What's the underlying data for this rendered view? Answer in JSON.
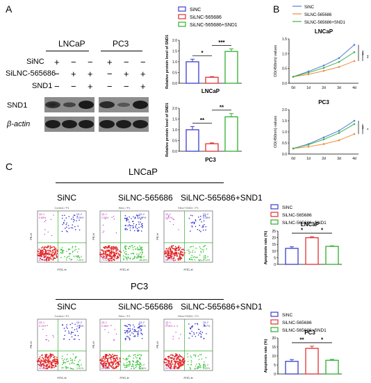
{
  "panels": {
    "A": "A",
    "B": "B",
    "C": "C"
  },
  "western_blot": {
    "cell_lines": [
      "LNCaP",
      "PC3"
    ],
    "row_labels": [
      "SiNC",
      "SiLNC-565686",
      "SND1"
    ],
    "signs": [
      [
        "+",
        "−",
        "−",
        "+",
        "−",
        "−"
      ],
      [
        "−",
        "+",
        "+",
        "−",
        "+",
        "+"
      ],
      [
        "−",
        "−",
        "+",
        "−",
        "−",
        "+"
      ]
    ],
    "protein_labels": [
      "SND1",
      "β-actin"
    ]
  },
  "legend": {
    "sinc": "SiNC",
    "silnc": "SiLNC-565686",
    "silnc_snd1": "SiLNC-565686+SND1"
  },
  "colors": {
    "sinc": "#3b3bcc",
    "silnc": "#e03030",
    "silnc_snd1": "#2eae2e",
    "orange": "#f08a3c",
    "blue_line": "#4f7fd6",
    "green_line": "#3cb44b"
  },
  "flow": {
    "section_titles": [
      "LNCaP",
      "PC3"
    ],
    "column_titles": [
      "SiNC",
      "SiLNC-565686",
      "SiLNC-565686+SND1"
    ],
    "lncap_plot_titles": [
      "Control / P1",
      "SiInc / P1",
      "Silnc+SND1 / P1"
    ],
    "pc3_plot_titles": [
      "Control / P1",
      "SiInc / P1",
      "SiInc+SND1 / P1"
    ],
    "lncap_quadrants": [
      [
        "Q1-1",
        "0.68%",
        "Q1-2",
        "4.26%",
        "Q1-3",
        "87.76%",
        "Q1-4",
        "7.30%"
      ],
      [
        "Q1-1",
        "2.03%",
        "Q1-2",
        "8.57%",
        "Q1-3",
        "71.92%",
        "Q1-4",
        "12.46%"
      ],
      [
        "Q1-1",
        "0.61%",
        "Q1-2",
        "5.48%",
        "Q1-3",
        "85.77%",
        "Q1-4",
        "8.14%"
      ]
    ],
    "pc3_quadrants": [
      [
        "Q1-1",
        "0.10%",
        "Q1-2",
        "3.45%",
        "Q1-3",
        "92.64%",
        "Q1-4",
        "3.81%"
      ],
      [
        "Q1-1",
        "0.31%",
        "Q1-2",
        "8.11%",
        "Q1-3",
        "85.45%",
        "Q1-4",
        "6.13%"
      ],
      [
        "Q1-1",
        "0.18%",
        "Q1-2",
        "4.17%",
        "Q1-3",
        "92.66%",
        "Q1-4",
        "3.00%"
      ]
    ],
    "axis_x": "FITC-H",
    "axis_y": "PE-H"
  },
  "chart_data": [
    {
      "type": "bar",
      "title": "LNCaP",
      "ylabel": "Relative protein level of SND1",
      "categories": [
        "SiNC",
        "SiLNC-565686",
        "SiLNC-565686+SND1"
      ],
      "values": [
        1.0,
        0.28,
        1.48
      ],
      "errors": [
        0.12,
        0.03,
        0.12
      ],
      "ylim": [
        0,
        2
      ],
      "yticks": [
        "0.0",
        "0.5",
        "1.0",
        "1.5",
        "2.0"
      ],
      "sig": [
        [
          "*",
          0,
          1
        ],
        [
          "***",
          1,
          2
        ]
      ]
    },
    {
      "type": "bar",
      "title": "PC3",
      "ylabel": "Relative protein level of SND1",
      "categories": [
        "SiNC",
        "SiLNC-565686",
        "SiLNC-565686+SND1"
      ],
      "values": [
        1.0,
        0.35,
        1.6
      ],
      "errors": [
        0.15,
        0.04,
        0.15
      ],
      "ylim": [
        0,
        2
      ],
      "yticks": [
        "0.0",
        "0.5",
        "1.0",
        "1.5",
        "2.0"
      ],
      "sig": [
        [
          "**",
          0,
          1
        ],
        [
          "**",
          1,
          2
        ]
      ]
    },
    {
      "type": "line",
      "title": "LNCaP",
      "ylabel": "OD(450nm) values",
      "x": [
        "0d",
        "1d",
        "2d",
        "3d",
        "4d"
      ],
      "series": [
        {
          "name": "SiNC",
          "values": [
            0.22,
            0.4,
            0.6,
            0.85,
            1.3
          ]
        },
        {
          "name": "SiLNC-565686",
          "values": [
            0.22,
            0.3,
            0.42,
            0.55,
            0.75
          ]
        },
        {
          "name": "SiLNC-565686+SND1",
          "values": [
            0.22,
            0.36,
            0.52,
            0.72,
            1.05
          ]
        }
      ],
      "ylim": [
        0,
        1.5
      ],
      "yticks": [
        "0.0",
        "0.5",
        "1.0",
        "1.5"
      ],
      "sig": [
        "***",
        "**"
      ]
    },
    {
      "type": "line",
      "title": "PC3",
      "ylabel": "OD(450nm) values",
      "x": [
        "0d",
        "1d",
        "2d",
        "3d",
        "4d"
      ],
      "series": [
        {
          "name": "SiNC",
          "values": [
            0.25,
            0.45,
            0.75,
            1.05,
            1.5
          ]
        },
        {
          "name": "SiLNC-565686",
          "values": [
            0.25,
            0.33,
            0.45,
            0.62,
            0.9
          ]
        },
        {
          "name": "SiLNC-565686+SND1",
          "values": [
            0.25,
            0.42,
            0.66,
            0.95,
            1.35
          ]
        }
      ],
      "ylim": [
        0,
        2
      ],
      "yticks": [
        "0.0",
        "0.5",
        "1.0",
        "1.5",
        "2.0"
      ],
      "sig": [
        "**",
        "*"
      ]
    },
    {
      "type": "bar",
      "title": "LNCaP",
      "ylabel": "Apoptosis rate (%)",
      "categories": [
        "SiNC",
        "SiLNC-565686",
        "SiLNC-565686+SND1"
      ],
      "values": [
        12,
        20,
        13.5
      ],
      "errors": [
        1.2,
        0.8,
        0.4
      ],
      "ylim": [
        0,
        25
      ],
      "yticks": [
        "0",
        "5",
        "10",
        "15",
        "20",
        "25"
      ],
      "sig": [
        [
          "*",
          0,
          1
        ],
        [
          "*",
          1,
          2
        ]
      ]
    },
    {
      "type": "bar",
      "title": "PC3",
      "ylabel": "Apoptosis rate (%)",
      "categories": [
        "SiNC",
        "SiLNC-565686",
        "SiLNC-565686+SND1"
      ],
      "values": [
        7,
        14.2,
        7.6
      ],
      "errors": [
        1.0,
        1.2,
        0.5
      ],
      "ylim": [
        0,
        20
      ],
      "yticks": [
        "0",
        "5",
        "10",
        "15",
        "20"
      ],
      "sig": [
        [
          "**",
          0,
          1
        ],
        [
          "*",
          1,
          2
        ]
      ]
    }
  ]
}
